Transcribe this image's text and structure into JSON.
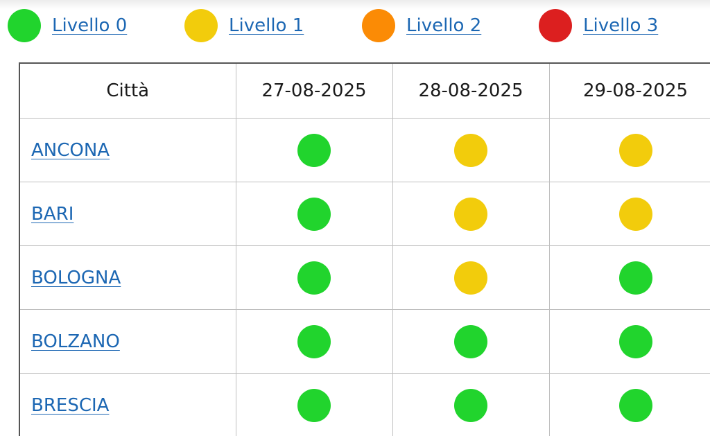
{
  "legend": {
    "items": [
      {
        "label": "Livello 0",
        "color": "#21d42d",
        "level": 0
      },
      {
        "label": "Livello 1",
        "color": "#f2cc0c",
        "level": 1
      },
      {
        "label": "Livello 2",
        "color": "#fb8b05",
        "level": 2
      },
      {
        "label": "Livello 3",
        "color": "#dc1f1f",
        "level": 3
      }
    ]
  },
  "table": {
    "headers": [
      "Città",
      "27-08-2025",
      "28-08-2025",
      "29-08-2025"
    ],
    "rows": [
      {
        "city": "ANCONA",
        "levels": [
          0,
          1,
          1
        ]
      },
      {
        "city": "BARI",
        "levels": [
          0,
          1,
          1
        ]
      },
      {
        "city": "BOLOGNA",
        "levels": [
          0,
          1,
          0
        ]
      },
      {
        "city": "BOLZANO",
        "levels": [
          0,
          0,
          0
        ]
      },
      {
        "city": "BRESCIA",
        "levels": [
          0,
          0,
          0
        ]
      }
    ]
  }
}
